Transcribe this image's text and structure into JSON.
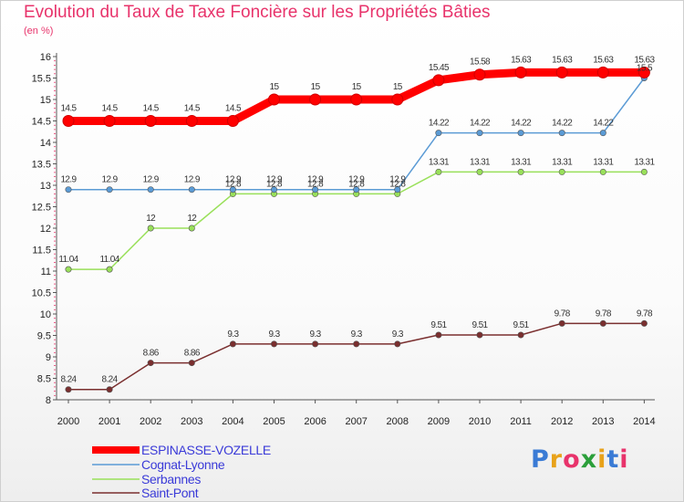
{
  "header": {
    "title": "Evolution du Taux de Taxe Foncière sur les Propriétés Bâties",
    "unit": "(en %)"
  },
  "logo": {
    "text": "Proxiti",
    "colors": [
      "#3a7bd5",
      "#e8a21a",
      "#e8336b",
      "#2b9f3a",
      "#e8a21a",
      "#3a7bd5",
      "#e8336b"
    ]
  },
  "chart_data": {
    "type": "line",
    "title": "Evolution du Taux de Taxe Foncière sur les Propriétés Bâties",
    "ylabel": "(en %)",
    "xlabel": "",
    "x": [
      "2000",
      "2001",
      "2002",
      "2003",
      "2004",
      "2005",
      "2006",
      "2007",
      "2008",
      "2009",
      "2010",
      "2011",
      "2012",
      "2013",
      "2014"
    ],
    "ylim": [
      8,
      16
    ],
    "yticks": [
      "8",
      "8.5",
      "9",
      "9.5",
      "10",
      "10.5",
      "11",
      "11.5",
      "12",
      "12.5",
      "13",
      "13.5",
      "14",
      "14.5",
      "15",
      "15.5",
      "16"
    ],
    "grid": false,
    "legend_position": "bottom-left",
    "series": [
      {
        "name": "ESPINASSE-VOZELLE",
        "color": "#ff0000",
        "values": [
          14.5,
          14.5,
          14.5,
          14.5,
          14.5,
          15,
          15,
          15,
          15,
          15.45,
          15.58,
          15.63,
          15.63,
          15.63,
          15.63
        ],
        "labels": [
          "14.5",
          "14.5",
          "14.5",
          "14.5",
          "14.5",
          "15",
          "15",
          "15",
          "15",
          "15.45",
          "15.58",
          "15.63",
          "15.63",
          "15.63",
          "15.63"
        ]
      },
      {
        "name": "Cognat-Lyonne",
        "color": "#5b9bd5",
        "values": [
          12.9,
          12.9,
          12.9,
          12.9,
          12.9,
          12.9,
          12.9,
          12.9,
          12.9,
          14.22,
          14.22,
          14.22,
          14.22,
          14.22,
          15.5
        ],
        "labels": [
          "12.9",
          "12.9",
          "12.9",
          "12.9",
          "12.9",
          "12.9",
          "12.9",
          "12.9",
          "12.9",
          "14.22",
          "14.22",
          "14.22",
          "14.22",
          "14.22",
          "15.5"
        ]
      },
      {
        "name": "Serbannes",
        "color": "#99e05a",
        "values": [
          11.04,
          11.04,
          12,
          12,
          12.8,
          12.8,
          12.8,
          12.8,
          12.8,
          13.31,
          13.31,
          13.31,
          13.31,
          13.31,
          13.31
        ],
        "labels": [
          "11.04",
          "11.04",
          "12",
          "12",
          "12.8",
          "12.8",
          "12.8",
          "12.8",
          "12.8",
          "13.31",
          "13.31",
          "13.31",
          "13.31",
          "13.31",
          "13.31"
        ]
      },
      {
        "name": "Saint-Pont",
        "color": "#7a2f2f",
        "values": [
          8.24,
          8.24,
          8.86,
          8.86,
          9.3,
          9.3,
          9.3,
          9.3,
          9.3,
          9.51,
          9.51,
          9.51,
          9.78,
          9.78,
          9.78
        ],
        "labels": [
          "8.24",
          "8.24",
          "8.86",
          "8.86",
          "9.3",
          "9.3",
          "9.3",
          "9.3",
          "9.3",
          "9.51",
          "9.51",
          "9.51",
          "9.78",
          "9.78",
          "9.78"
        ]
      }
    ]
  }
}
